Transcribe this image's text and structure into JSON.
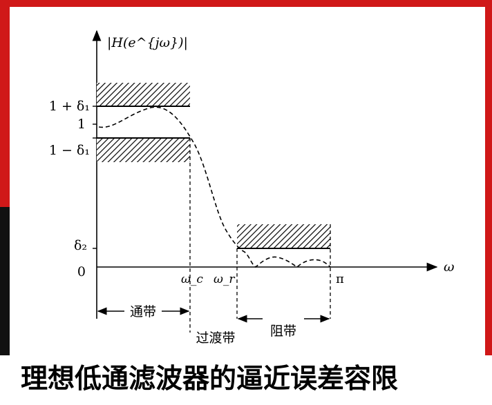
{
  "diagram": {
    "y_axis_label": "|H(e^{jω})|",
    "x_axis_label": "ω",
    "y_ticks": {
      "one_plus_delta1": "1 + δ₁",
      "one": "1",
      "one_minus_delta1": "1 − δ₁",
      "delta2": "δ₂",
      "zero": "0"
    },
    "x_ticks": {
      "omega_c": "ω_c",
      "omega_r": "ω_r",
      "pi": "π"
    },
    "band_labels": {
      "passband": "通带",
      "transition_band": "过渡带",
      "stopband": "阻带"
    }
  },
  "caption": "理想低通滤波器的逼近误差容限"
}
